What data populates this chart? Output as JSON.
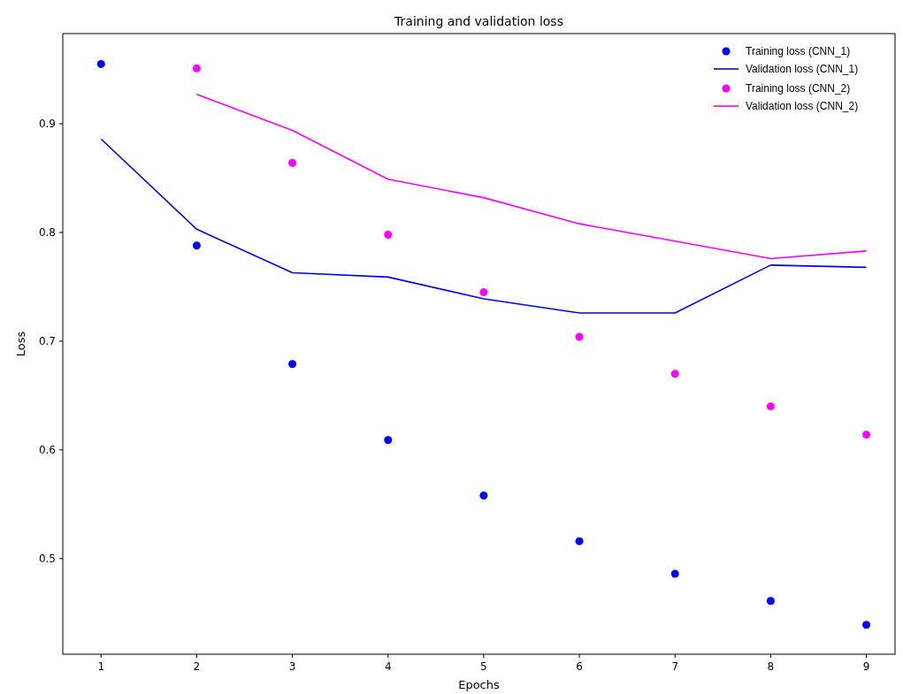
{
  "chart_data": {
    "type": "line",
    "title": "Training and validation loss",
    "xlabel": "Epochs",
    "ylabel": "Loss",
    "x": [
      1,
      2,
      3,
      4,
      5,
      6,
      7,
      8,
      9
    ],
    "xlim": [
      0.6,
      9.3
    ],
    "xticks": [
      1,
      2,
      3,
      4,
      5,
      6,
      7,
      8,
      9
    ],
    "ylim": [
      0.412,
      0.983
    ],
    "yticks": [
      0.5,
      0.6,
      0.7,
      0.8,
      0.9
    ],
    "legend": "top right",
    "grid": false,
    "series": [
      {
        "name": "Training loss (CNN_1)",
        "type": "scatter",
        "marker": "circle",
        "color": "#0000ff",
        "values": [
          0.955,
          0.788,
          0.679,
          0.609,
          0.558,
          0.516,
          0.486,
          0.461,
          0.439
        ]
      },
      {
        "name": "Validation loss (CNN_1)",
        "type": "line",
        "color": "#0000ff",
        "values": [
          0.886,
          0.803,
          0.763,
          0.759,
          0.739,
          0.726,
          0.726,
          0.77,
          0.768
        ]
      },
      {
        "name": "Training loss (CNN_2)",
        "type": "scatter",
        "marker": "circle",
        "color": "#ff00ff",
        "values": [
          null,
          0.951,
          0.864,
          0.798,
          0.745,
          0.704,
          0.67,
          0.64,
          0.614
        ]
      },
      {
        "name": "Validation loss (CNN_2)",
        "type": "line",
        "color": "#ff00ff",
        "values": [
          null,
          0.927,
          0.894,
          0.849,
          0.832,
          0.808,
          0.792,
          0.776,
          0.783
        ]
      }
    ]
  }
}
